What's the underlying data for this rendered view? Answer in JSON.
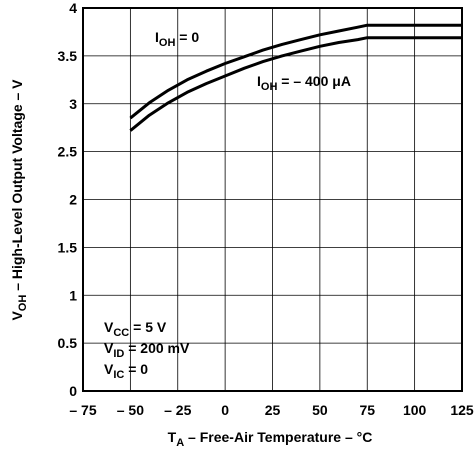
{
  "chart_data": {
    "type": "line",
    "xlabel": {
      "main": "T",
      "sub": "A",
      "rest": " – Free-Air Temperature – °C"
    },
    "ylabel": {
      "main": "V",
      "sub": "OH",
      "rest": " – High-Level Output Voltage – V"
    },
    "xlim": [
      -75,
      125
    ],
    "ylim": [
      0,
      4
    ],
    "xticks": [
      -75,
      -50,
      -25,
      0,
      25,
      50,
      75,
      100,
      125
    ],
    "xtick_labels": [
      "– 75",
      "– 50",
      "– 25",
      "0",
      "25",
      "50",
      "75",
      "100",
      "125"
    ],
    "yticks": [
      0,
      0.5,
      1,
      1.5,
      2,
      2.5,
      3,
      3.5,
      4
    ],
    "ytick_labels": [
      "0",
      "0.5",
      "1",
      "1.5",
      "2",
      "2.5",
      "3",
      "3.5",
      "4"
    ],
    "grid": true,
    "series": [
      {
        "name": "IOH = 0",
        "x": [
          -50,
          -40,
          -30,
          -20,
          -10,
          0,
          10,
          20,
          30,
          40,
          50,
          60,
          70,
          75,
          100,
          125
        ],
        "y": [
          2.85,
          3.01,
          3.14,
          3.25,
          3.34,
          3.42,
          3.49,
          3.56,
          3.62,
          3.67,
          3.72,
          3.76,
          3.8,
          3.82,
          3.82,
          3.82
        ]
      },
      {
        "name": "IOH = −400 µA",
        "x": [
          -50,
          -40,
          -30,
          -20,
          -10,
          0,
          10,
          20,
          30,
          40,
          50,
          60,
          70,
          75,
          100,
          125
        ],
        "y": [
          2.72,
          2.88,
          3.01,
          3.12,
          3.21,
          3.29,
          3.37,
          3.44,
          3.5,
          3.55,
          3.6,
          3.64,
          3.67,
          3.69,
          3.69,
          3.69
        ]
      }
    ],
    "annotations": {
      "ioh0": {
        "main": "I",
        "sub": "OH",
        "rest": " = 0"
      },
      "ioh400": {
        "main": "I",
        "sub": "OH",
        "rest": " = – 400 μA"
      },
      "conditions": [
        {
          "main": "V",
          "sub": "CC",
          "rest": " = 5 V"
        },
        {
          "main": "V",
          "sub": "ID",
          "rest": " = 200 mV"
        },
        {
          "main": "V",
          "sub": "IC",
          "rest": " = 0"
        }
      ]
    }
  }
}
